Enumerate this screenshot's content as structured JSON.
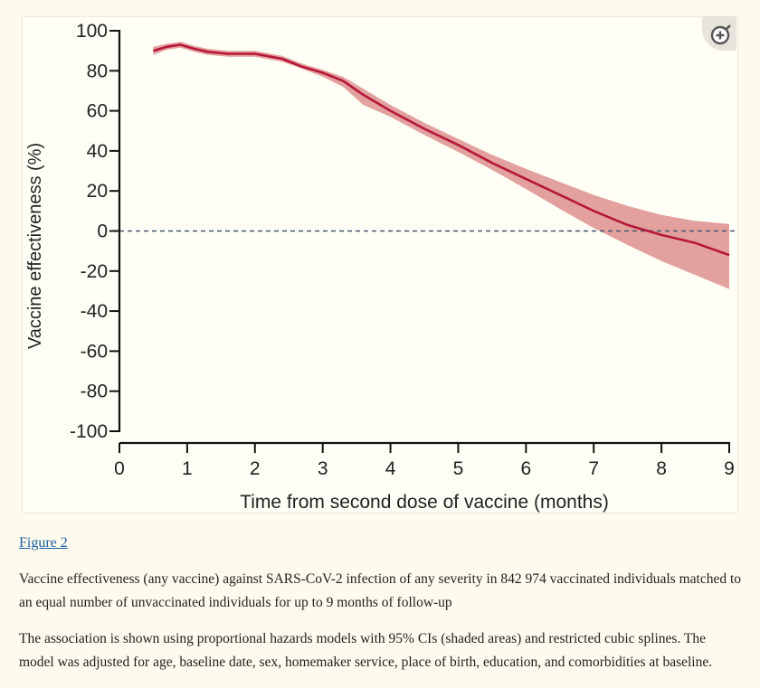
{
  "figure": {
    "link_label": "Figure 2",
    "caption_title": "Vaccine effectiveness (any vaccine) against SARS-CoV-2 infection of any severity in 842 974 vaccinated individuals matched to an equal number of unvaccinated individuals for up to 9 months of follow-up",
    "caption_body": "The association is shown using proportional hazards models with 95% CIs (shaded areas) and restricted cubic splines. The model was adjusted for age, baseline date, sex, homemaker service, place of birth, education, and comorbidities at baseline."
  },
  "zoom_icon": "zoom-in-icon",
  "colors": {
    "line": "#b5173a",
    "band": "#e3a19d",
    "reference_line": "#44566b"
  },
  "chart_data": {
    "type": "line",
    "xlabel": "Time from second dose of vaccine (months)",
    "ylabel": "Vaccine effectiveness (%)",
    "xlim": [
      0,
      9
    ],
    "ylim": [
      -100,
      100
    ],
    "x_ticks": [
      "0",
      "1",
      "2",
      "3",
      "4",
      "5",
      "6",
      "7",
      "8",
      "9"
    ],
    "y_ticks": [
      "100",
      "80",
      "60",
      "40",
      "20",
      "0",
      "-20",
      "-40",
      "-60",
      "-80",
      "-100"
    ],
    "reference_line_y": 0,
    "grid": false,
    "series": [
      {
        "x": [
          0.5,
          0.7,
          0.9,
          1.1,
          1.3,
          1.6,
          2.0,
          2.4,
          2.7,
          3.0,
          3.3,
          3.6,
          4.0,
          4.5,
          5.0,
          5.5,
          6.0,
          6.5,
          7.0,
          7.5,
          8.0,
          8.5,
          9.0
        ],
        "y": [
          90,
          92,
          93,
          91,
          89.5,
          88.5,
          88.5,
          86,
          82,
          79,
          75,
          68,
          60,
          51,
          43,
          34,
          26,
          18,
          10,
          3,
          -2,
          -6,
          -12
        ],
        "ci_lower": [
          88,
          90.5,
          91.5,
          89.5,
          88,
          87,
          87,
          84.5,
          81,
          77,
          72,
          63,
          57,
          48,
          39.5,
          30.5,
          21,
          11,
          1.5,
          -7,
          -15,
          -22,
          -29
        ],
        "ci_upper": [
          92,
          93.5,
          94.5,
          92.5,
          91,
          90,
          90,
          87.5,
          83.5,
          80.5,
          77,
          71,
          63,
          54,
          46,
          38,
          31,
          24.5,
          18,
          12.5,
          8,
          5,
          3.5
        ]
      }
    ]
  }
}
